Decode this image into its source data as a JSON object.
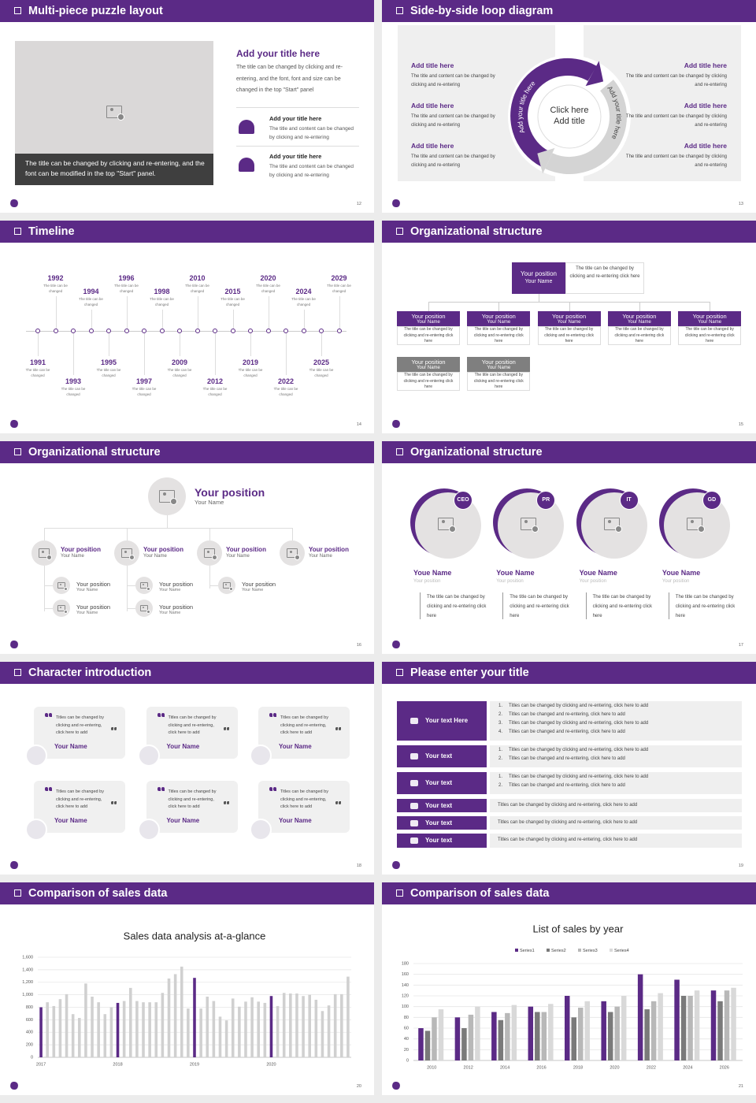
{
  "slides": [
    {
      "title": "Multi-piece puzzle layout",
      "page": "12",
      "caption": "The title can be changed by clicking and re-entering, and the font can be modified in the top \"Start\" panel.",
      "heading": "Add your title here",
      "body": "The title can be changed by clicking and re-entering, and the font, font and size can be changed in the top \"Start\" panel",
      "items": [
        {
          "title": "Add your title here",
          "text": "The title and content can be changed by clicking and re-entering"
        },
        {
          "title": "Add your title here",
          "text": "The title and content can be changed by clicking and re-entering"
        }
      ]
    },
    {
      "title": "Side-by-side loop diagram",
      "page": "13",
      "left": [
        {
          "title": "Add title here",
          "text": "The title and content can be changed by clicking and re-entering"
        },
        {
          "title": "Add title here",
          "text": "The title and content can be changed by clicking and re-entering"
        },
        {
          "title": "Add title here",
          "text": "The title and content can be changed by clicking and re-entering"
        }
      ],
      "right": [
        {
          "title": "Add title here",
          "text": "The title and content can be changed by clicking and re-entering"
        },
        {
          "title": "Add title here",
          "text": "The title and content can be changed by clicking and re-entering"
        },
        {
          "title": "Add title here",
          "text": "The title and content can be changed by clicking and re-entering"
        }
      ],
      "center": [
        "Click here",
        "Add title"
      ],
      "arc_left": "Add your title here",
      "arc_right": "Add your title here"
    },
    {
      "title": "Timeline",
      "page": "14",
      "events": [
        {
          "year": "1991",
          "text": "The title can be changed"
        },
        {
          "year": "1992",
          "text": "The title can be changed"
        },
        {
          "year": "1993",
          "text": "The title can be changed"
        },
        {
          "year": "1994",
          "text": "The title can be changed"
        },
        {
          "year": "1995",
          "text": "The title can be changed"
        },
        {
          "year": "1996",
          "text": "The title can be changed"
        },
        {
          "year": "1997",
          "text": "The title can be changed"
        },
        {
          "year": "1998",
          "text": "The title can be changed"
        },
        {
          "year": "2009",
          "text": "The title can be changed"
        },
        {
          "year": "2010",
          "text": "The title can be changed"
        },
        {
          "year": "2012",
          "text": "The title can be changed"
        },
        {
          "year": "2015",
          "text": "The title can be changed"
        },
        {
          "year": "2019",
          "text": "The title can be changed"
        },
        {
          "year": "2020",
          "text": "The title can be changed"
        },
        {
          "year": "2022",
          "text": "The title can be changed"
        },
        {
          "year": "2024",
          "text": "The title can be changed"
        },
        {
          "year": "2025",
          "text": "The title can be changed"
        },
        {
          "year": "2029",
          "text": "The title can be changed"
        }
      ]
    },
    {
      "title": "Organizational structure",
      "page": "15",
      "top": {
        "position": "Your position",
        "name": "Your Name",
        "text": "The title can be changed by clicking and re-entering click here"
      },
      "rows": [
        [
          {
            "position": "Your position",
            "name": "Your Name",
            "text": "The title can be changed by clicking and re-entering click here"
          },
          {
            "position": "Your position",
            "name": "Your Name",
            "text": "The title can be changed by clicking and re-entering click here"
          },
          {
            "position": "Your position",
            "name": "Your Name",
            "text": "The title can be changed by clicking and re-entering click here"
          },
          {
            "position": "Your position",
            "name": "Your Name",
            "text": "The title can be changed by clicking and re-entering click here"
          },
          {
            "position": "Your position",
            "name": "Your Name",
            "text": "The title can be changed by clicking and re-entering click here"
          }
        ],
        [
          {
            "position": "Your position",
            "name": "Your Name",
            "text": "The title can be changed by clicking and re-entering click here"
          },
          {
            "position": "Your position",
            "name": "Your Name",
            "text": "The title can be changed by clicking and re-entering click here"
          }
        ]
      ]
    },
    {
      "title": "Organizational structure",
      "page": "16",
      "top": {
        "position": "Your position",
        "name": "Your Name"
      },
      "groups": [
        {
          "position": "Your position",
          "name": "Your Name",
          "subs": [
            {
              "position": "Your position",
              "name": "Your Name"
            },
            {
              "position": "Your position",
              "name": "Your Name"
            }
          ]
        },
        {
          "position": "Your position",
          "name": "Your Name",
          "subs": [
            {
              "position": "Your position",
              "name": "Your Name"
            },
            {
              "position": "Your position",
              "name": "Your Name"
            }
          ]
        },
        {
          "position": "Your position",
          "name": "Your Name",
          "subs": [
            {
              "position": "Your position",
              "name": "Your Name"
            }
          ]
        },
        {
          "position": "Your position",
          "name": "Your Name",
          "subs": []
        }
      ]
    },
    {
      "title": "Organizational structure",
      "page": "17",
      "members": [
        {
          "badge": "CEO",
          "name": "Youe Name",
          "position": "Your position",
          "text": "The title can be changed by clicking and re-entering click here"
        },
        {
          "badge": "PR",
          "name": "Youe Name",
          "position": "Your position",
          "text": "The title can be changed by clicking and re-entering click here"
        },
        {
          "badge": "IT",
          "name": "Youe Name",
          "position": "Your position",
          "text": "The title can be changed by clicking and re-entering click here"
        },
        {
          "badge": "GD",
          "name": "Youe Name",
          "position": "Your position",
          "text": "The title can be changed by clicking and re-entering click here"
        }
      ]
    },
    {
      "title": "Character introduction",
      "page": "18",
      "cards": [
        {
          "quote": "Titles can be changed by clicking and re-entering, click here to add",
          "name": "Your Name"
        },
        {
          "quote": "Titles can be changed by clicking and re-entering, click here to add",
          "name": "Your Name"
        },
        {
          "quote": "Titles can be changed by clicking and re-entering, click here to add",
          "name": "Your Name"
        },
        {
          "quote": "Titles can be changed by clicking and re-entering, click here to add",
          "name": "Your Name"
        },
        {
          "quote": "Titles can be changed by clicking and re-entering, click here to add",
          "name": "Your Name"
        },
        {
          "quote": "Titles can be changed by clicking and re-entering, click here to add",
          "name": "Your Name"
        }
      ]
    },
    {
      "title": "Please enter your title",
      "page": "19",
      "rows": [
        {
          "label": "Your text Here",
          "items": [
            {
              "marker": "1.",
              "text": "Titles can be changed by clicking and re-entering, click here to add"
            },
            {
              "marker": "2.",
              "text": "Titles can be changed and re-entering, click here to add"
            },
            {
              "marker": "3.",
              "text": "Titles can be changed by clicking and re-entering, click here to add"
            },
            {
              "marker": "4.",
              "text": "Titles can be changed and re-entering, click here to add"
            }
          ]
        },
        {
          "label": "Your text",
          "items": [
            {
              "marker": "1.",
              "text": "Titles can be changed by clicking and re-entering, click here to add"
            },
            {
              "marker": "2.",
              "text": "Titles can be changed and re-entering, click here to add"
            }
          ]
        },
        {
          "label": "Your text",
          "items": [
            {
              "marker": "1.",
              "text": "Titles can be changed by clicking and re-entering, click here to add"
            },
            {
              "marker": "2.",
              "text": "Titles can be changed and re-entering, click here to add"
            }
          ]
        },
        {
          "label": "Your text",
          "text": "Titles can be changed by clicking and re-entering, click here to add"
        },
        {
          "label": "Your text",
          "text": "Titles can be changed by clicking and re-entering, click here to add"
        },
        {
          "label": "Your text",
          "text": "Titles can be changed by clicking and re-entering, click here to add"
        }
      ]
    },
    {
      "title": "Comparison of sales data",
      "page": "20"
    },
    {
      "title": "Comparison of sales data",
      "page": "21"
    }
  ],
  "chart_data": [
    {
      "type": "bar",
      "title": "Sales data analysis at-a-glance",
      "categories": [
        "2017",
        null,
        null,
        null,
        null,
        null,
        null,
        null,
        null,
        null,
        null,
        null,
        "2018",
        null,
        null,
        null,
        null,
        null,
        null,
        null,
        null,
        null,
        null,
        null,
        "2019",
        null,
        null,
        null,
        null,
        null,
        null,
        null,
        null,
        null,
        null,
        null,
        "2020",
        null,
        null,
        null,
        null,
        null,
        null,
        null,
        null,
        null,
        null,
        null,
        null
      ],
      "values": [
        800,
        880,
        820,
        930,
        1010,
        690,
        630,
        1180,
        970,
        880,
        690,
        800,
        870,
        900,
        1110,
        900,
        880,
        880,
        880,
        1030,
        1260,
        1330,
        1450,
        780,
        1270,
        780,
        970,
        900,
        650,
        590,
        940,
        810,
        890,
        960,
        890,
        870,
        980,
        820,
        1030,
        1020,
        1020,
        980,
        1000,
        920,
        740,
        830,
        1010,
        1010,
        1290
      ],
      "colors": [
        "#5b2a86",
        "#d0d0d0",
        "#d0d0d0",
        "#d0d0d0",
        "#d0d0d0",
        "#d0d0d0",
        "#d0d0d0",
        "#d0d0d0",
        "#d0d0d0",
        "#d0d0d0",
        "#d0d0d0",
        "#d0d0d0",
        "#5b2a86",
        "#d0d0d0",
        "#d0d0d0",
        "#d0d0d0",
        "#d0d0d0",
        "#d0d0d0",
        "#d0d0d0",
        "#d0d0d0",
        "#d0d0d0",
        "#d0d0d0",
        "#d0d0d0",
        "#d0d0d0",
        "#5b2a86",
        "#d0d0d0",
        "#d0d0d0",
        "#d0d0d0",
        "#d0d0d0",
        "#d0d0d0",
        "#d0d0d0",
        "#d0d0d0",
        "#d0d0d0",
        "#d0d0d0",
        "#d0d0d0",
        "#d0d0d0",
        "#5b2a86",
        "#d0d0d0",
        "#d0d0d0",
        "#d0d0d0",
        "#d0d0d0",
        "#d0d0d0",
        "#d0d0d0",
        "#d0d0d0",
        "#d0d0d0",
        "#d0d0d0",
        "#d0d0d0",
        "#d0d0d0",
        "#d0d0d0"
      ],
      "ylim": [
        0,
        1600
      ],
      "yticks": [
        0,
        200,
        400,
        600,
        800,
        {
          "value": 1000,
          "label": "1,000"
        },
        {
          "value": 1200,
          "label": "1,200"
        },
        {
          "value": 1400,
          "label": "1,400"
        },
        {
          "value": 1600,
          "label": "1,600"
        }
      ],
      "grid": true
    },
    {
      "type": "bar",
      "title": "List of sales by year",
      "categories": [
        "2010",
        "2012",
        "2014",
        "2016",
        "2018",
        "2020",
        "2022",
        "2024",
        "2026"
      ],
      "series": [
        {
          "name": "Series1",
          "color": "#5b2a86",
          "values": [
            60,
            80,
            90,
            100,
            120,
            110,
            160,
            150,
            130
          ]
        },
        {
          "name": "Series2",
          "color": "#7a7a7a",
          "values": [
            55,
            60,
            75,
            90,
            80,
            90,
            95,
            120,
            110
          ]
        },
        {
          "name": "Series3",
          "color": "#b8b8b8",
          "values": [
            80,
            85,
            88,
            90,
            98,
            100,
            110,
            120,
            130
          ]
        },
        {
          "name": "Series4",
          "color": "#d9d9d9",
          "values": [
            95,
            100,
            103,
            105,
            110,
            120,
            125,
            130,
            135
          ]
        }
      ],
      "ylim": [
        0,
        180
      ],
      "yticks": [
        0,
        20,
        40,
        60,
        80,
        100,
        120,
        140,
        160,
        180
      ],
      "grid": true,
      "legend": "top"
    }
  ]
}
